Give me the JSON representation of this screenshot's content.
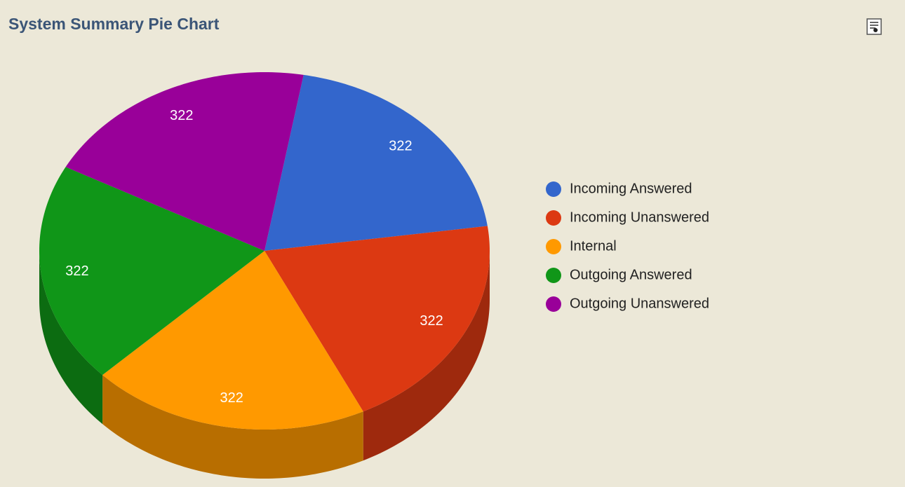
{
  "chart_data": {
    "type": "pie",
    "title": "System Summary Pie Chart",
    "categories": [
      "Incoming Answered",
      "Incoming Unanswered",
      "Internal",
      "Outgoing Answered",
      "Outgoing Unanswered"
    ],
    "values": [
      322,
      322,
      322,
      322,
      322
    ],
    "colors": [
      "#3366cc",
      "#dc3912",
      "#ff9900",
      "#109618",
      "#990099"
    ]
  }
}
